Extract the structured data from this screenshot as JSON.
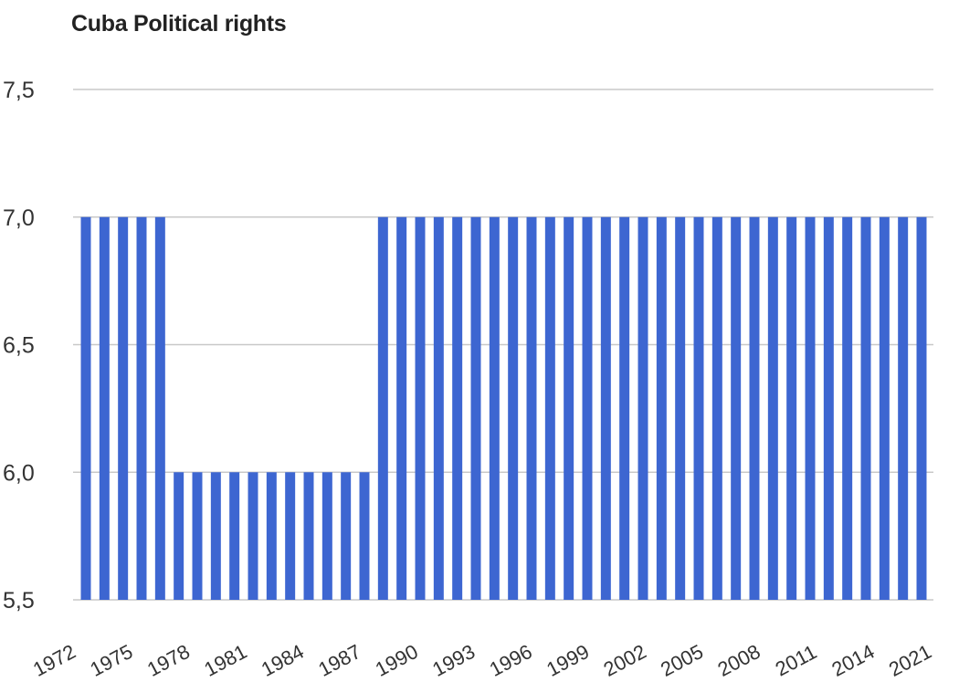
{
  "chart_data": {
    "type": "bar",
    "title": "Cuba Political rights",
    "xlabel": "",
    "ylabel": "",
    "ylim": [
      5.5,
      7.5
    ],
    "yticks": [
      7.5,
      7.0,
      6.5,
      6.0,
      5.5
    ],
    "ytick_labels": [
      "7,5",
      "7,0",
      "6,5",
      "6,0",
      "5,5"
    ],
    "xtick_labels": [
      "1972",
      "1975",
      "1978",
      "1981",
      "1984",
      "1987",
      "1990",
      "1993",
      "1996",
      "1999",
      "2002",
      "2005",
      "2008",
      "2011",
      "2014",
      "2021"
    ],
    "grid": true,
    "bar_color": "#3d66d1",
    "values": [
      7,
      7,
      7,
      7,
      7,
      6,
      6,
      6,
      6,
      6,
      6,
      6,
      6,
      6,
      6,
      6,
      7,
      7,
      7,
      7,
      7,
      7,
      7,
      7,
      7,
      7,
      7,
      7,
      7,
      7,
      7,
      7,
      7,
      7,
      7,
      7,
      7,
      7,
      7,
      7,
      7,
      7,
      7,
      7,
      7,
      7
    ]
  }
}
